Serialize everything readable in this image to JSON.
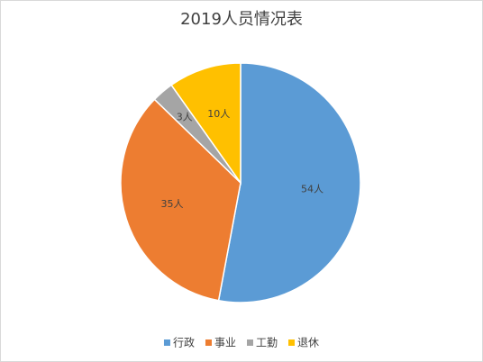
{
  "chart_data": {
    "type": "pie",
    "title": "2019人员情况表",
    "categories": [
      "行政",
      "事业",
      "工勤",
      "退休"
    ],
    "values": [
      54,
      35,
      3,
      10
    ],
    "value_labels": [
      "54人",
      "35人",
      "3人",
      "10人"
    ],
    "colors": [
      "#5b9bd5",
      "#ed7d31",
      "#a5a5a5",
      "#ffc000"
    ],
    "legend": "bottom"
  }
}
